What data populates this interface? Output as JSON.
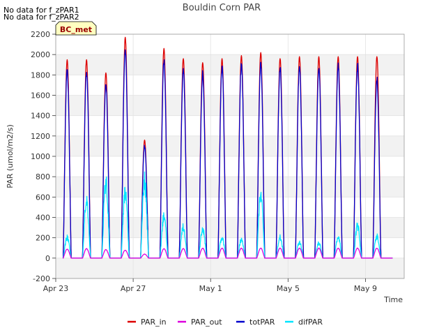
{
  "notes": [
    "No data for f_zPAR1",
    "No data for f_zPAR2"
  ],
  "chart_data": {
    "type": "line",
    "title": "Bouldin Corn PAR",
    "xlabel": "Time",
    "ylabel": "PAR (umol/m2/s)",
    "xlim": [
      0,
      18
    ],
    "ylim": [
      -200,
      2200
    ],
    "yticks": [
      -200,
      0,
      200,
      400,
      600,
      800,
      1000,
      1200,
      1400,
      1600,
      1800,
      2000,
      2200
    ],
    "xticks": [
      {
        "day": 0,
        "label": "Apr 23"
      },
      {
        "day": 4,
        "label": "Apr 27"
      },
      {
        "day": 8,
        "label": "May 1"
      },
      {
        "day": 12,
        "label": "May 5"
      },
      {
        "day": 16,
        "label": "May 9"
      }
    ],
    "site_badge": "BC_met",
    "legend_position": "bottom-center",
    "series": [
      {
        "name": "PAR_in",
        "color": "#dd0000",
        "daily_peak": [
          1950,
          1950,
          1820,
          2170,
          1160,
          2060,
          1960,
          1920,
          1960,
          1990,
          2020,
          1960,
          1980,
          1980,
          1980,
          1980,
          1980
        ]
      },
      {
        "name": "PAR_out",
        "color": "#dd00dd",
        "daily_peak": [
          90,
          95,
          85,
          80,
          40,
          95,
          95,
          100,
          100,
          100,
          100,
          100,
          100,
          100,
          100,
          100,
          100
        ]
      },
      {
        "name": "totPAR",
        "color": "#0000cc",
        "daily_peak": [
          1880,
          1870,
          1750,
          2090,
          1120,
          1970,
          1900,
          1850,
          1910,
          1940,
          1950,
          1910,
          1930,
          1920,
          1930,
          1930,
          1800
        ]
      },
      {
        "name": "difPAR",
        "color": "#00e5ff",
        "daily_peak": [
          230,
          650,
          860,
          750,
          850,
          470,
          350,
          330,
          230,
          210,
          690,
          230,
          180,
          170,
          240,
          360,
          240
        ]
      }
    ]
  }
}
